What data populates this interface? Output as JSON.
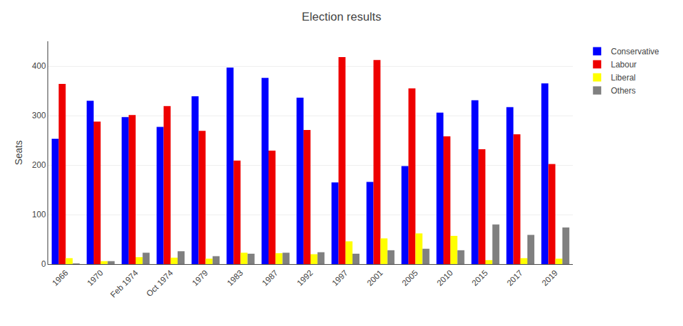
{
  "chart_data": {
    "type": "bar",
    "title": "Election results",
    "ylabel": "Seats",
    "categories": [
      "1966",
      "1970",
      "Feb 1974",
      "Oct 1974",
      "1979",
      "1983",
      "1987",
      "1992",
      "1997",
      "2001",
      "2005",
      "2010",
      "2015",
      "2017",
      "2019"
    ],
    "series": [
      {
        "name": "Conservative",
        "color": "#0000FF",
        "values": [
          253,
          330,
          297,
          277,
          339,
          397,
          376,
          336,
          165,
          166,
          198,
          306,
          331,
          317,
          365
        ]
      },
      {
        "name": "Labour",
        "color": "#EE0000",
        "values": [
          364,
          288,
          301,
          319,
          269,
          209,
          229,
          271,
          418,
          412,
          355,
          258,
          232,
          262,
          202
        ]
      },
      {
        "name": "Liberal",
        "color": "#FFFF00",
        "values": [
          12,
          6,
          14,
          13,
          11,
          23,
          22,
          20,
          46,
          52,
          62,
          57,
          8,
          12,
          11
        ]
      },
      {
        "name": "Others",
        "color": "#808080",
        "values": [
          1,
          6,
          23,
          26,
          16,
          21,
          23,
          24,
          21,
          28,
          31,
          28,
          80,
          59,
          74
        ]
      }
    ],
    "ylim": [
      0,
      450
    ],
    "yticks": [
      0,
      100,
      200,
      300,
      400
    ],
    "grid": true,
    "legend": "right"
  }
}
